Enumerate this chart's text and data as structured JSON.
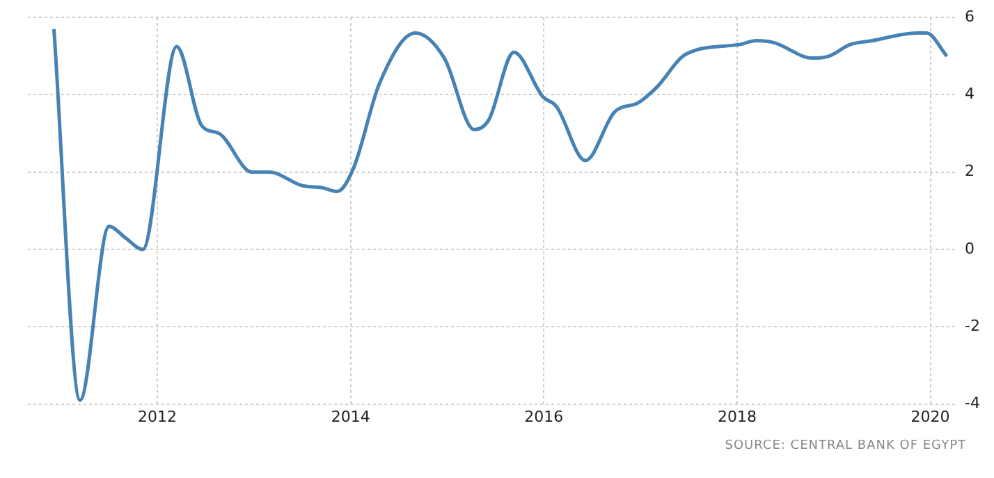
{
  "chart_data": {
    "type": "line",
    "x": [
      2010.93,
      2011.2,
      2011.5,
      2011.67,
      2011.85,
      2012.2,
      2012.46,
      2012.64,
      2012.98,
      2013.16,
      2013.5,
      2013.7,
      2013.86,
      2014.03,
      2014.3,
      2014.67,
      2014.97,
      2015.28,
      2015.43,
      2015.69,
      2015.99,
      2016.13,
      2016.43,
      2016.73,
      2016.98,
      2017.17,
      2017.47,
      2018.02,
      2018.2,
      2018.38,
      2018.78,
      2018.95,
      2019.17,
      2019.4,
      2019.86,
      2019.96,
      2020.17
    ],
    "series": [
      {
        "color": "#4682b4",
        "values": [
          5.7,
          -3.9,
          0.6,
          0.3,
          0.0,
          5.25,
          3.2,
          3.0,
          2.0,
          2.0,
          1.65,
          1.6,
          1.5,
          2.1,
          4.3,
          5.6,
          4.95,
          3.1,
          3.35,
          5.1,
          3.95,
          3.7,
          2.3,
          3.55,
          3.8,
          4.2,
          5.05,
          5.3,
          5.4,
          5.35,
          4.95,
          5.0,
          5.3,
          5.4,
          5.6,
          5.6,
          5.0
        ]
      }
    ],
    "xlim": [
      2010.66,
      2020.27
    ],
    "xticks": [
      2012,
      2014,
      2016,
      2018,
      2020
    ],
    "ylim": [
      -4,
      6
    ],
    "yticks": [
      -4,
      -2,
      0,
      2,
      4,
      6
    ],
    "grid": true,
    "legend": false,
    "marker": "none",
    "line_style": "solid",
    "annotations": [
      "SOURCE: CENTRAL BANK OF EGYPT"
    ]
  }
}
